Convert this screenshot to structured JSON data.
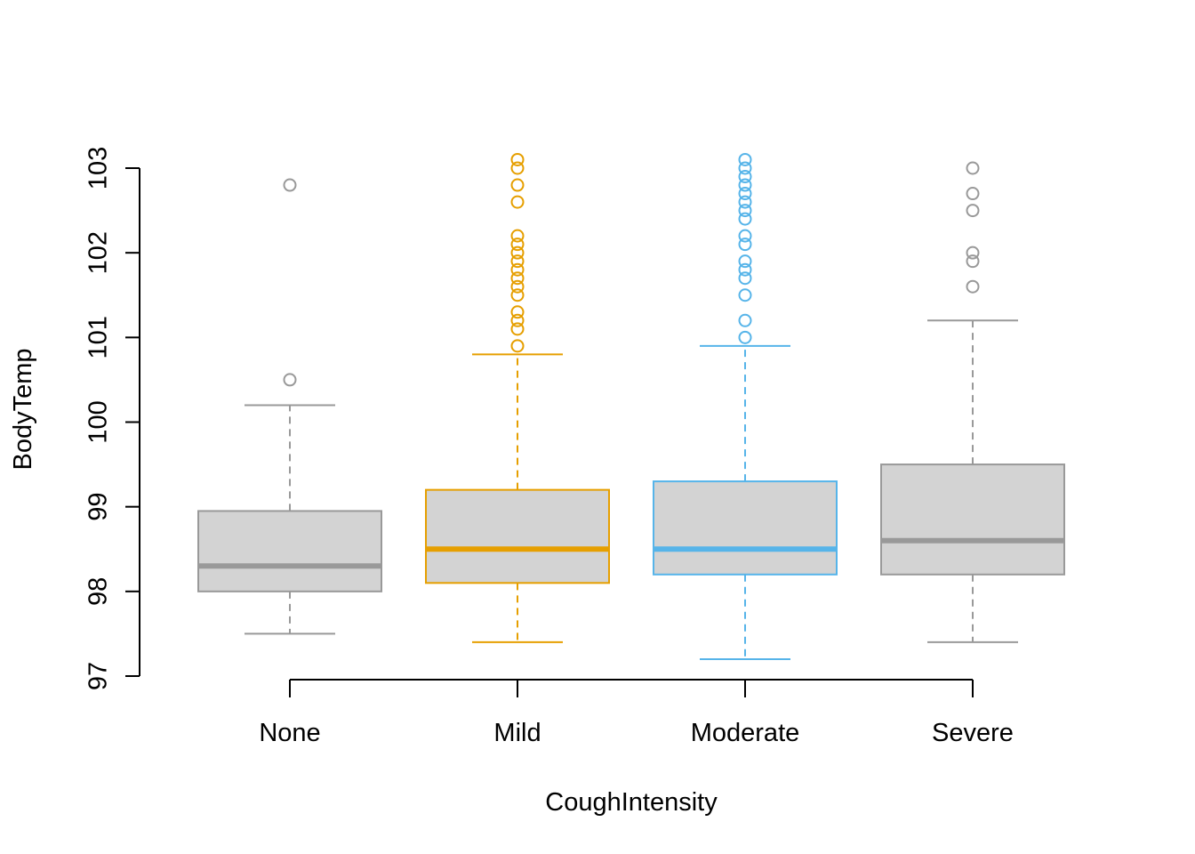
{
  "chart_data": {
    "type": "boxplot",
    "xlabel": "CoughIntensity",
    "ylabel": "BodyTemp",
    "ylim": [
      97,
      103
    ],
    "yticks": [
      "97",
      "98",
      "99",
      "100",
      "101",
      "102",
      "103"
    ],
    "grid": false,
    "legend": "none",
    "box_fill": "#d3d3d3",
    "groups": [
      {
        "name": "None",
        "color": "#999999",
        "whisker_low": 97.5,
        "q1": 98.0,
        "median": 98.3,
        "q3": 98.95,
        "whisker_high": 100.2,
        "outliers": [
          100.5,
          102.8
        ]
      },
      {
        "name": "Mild",
        "color": "#e69f00",
        "whisker_low": 97.4,
        "q1": 98.1,
        "median": 98.5,
        "q3": 99.2,
        "whisker_high": 100.8,
        "outliers": [
          100.9,
          101.1,
          101.2,
          101.3,
          101.5,
          101.6,
          101.7,
          101.8,
          101.9,
          102.0,
          102.1,
          102.2,
          102.6,
          102.8,
          103.0,
          103.1
        ]
      },
      {
        "name": "Moderate",
        "color": "#56b4e9",
        "whisker_low": 97.2,
        "q1": 98.2,
        "median": 98.5,
        "q3": 99.3,
        "whisker_high": 100.9,
        "outliers": [
          101.0,
          101.2,
          101.5,
          101.7,
          101.8,
          101.9,
          102.1,
          102.2,
          102.4,
          102.5,
          102.6,
          102.7,
          102.8,
          102.9,
          103.0,
          103.1
        ]
      },
      {
        "name": "Severe",
        "color": "#999999",
        "whisker_low": 97.4,
        "q1": 98.2,
        "median": 98.6,
        "q3": 99.5,
        "whisker_high": 101.2,
        "outliers": [
          101.6,
          101.9,
          102.0,
          102.5,
          102.7,
          103.0
        ]
      }
    ]
  }
}
